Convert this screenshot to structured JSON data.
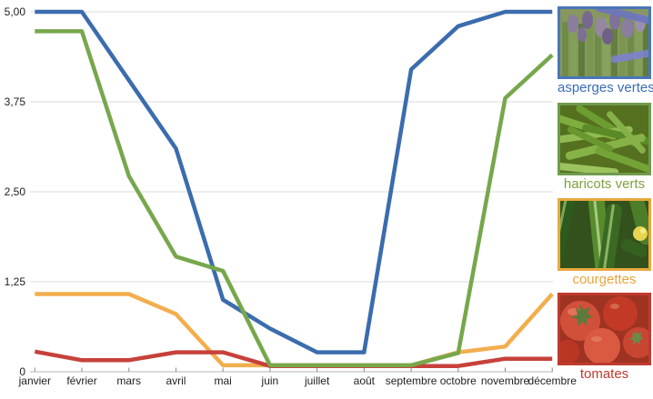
{
  "chart_data": {
    "type": "line",
    "title": "",
    "xlabel": "",
    "ylabel": "",
    "ylim": [
      0,
      5
    ],
    "grid": true,
    "legend_position": "right",
    "categories": [
      "janvier",
      "février",
      "mars",
      "avril",
      "mai",
      "juin",
      "juillet",
      "août",
      "septembre",
      "octobre",
      "novembre",
      "décembre"
    ],
    "yticks": [
      {
        "value": 5,
        "label": "5,00"
      },
      {
        "value": 3.75,
        "label": "3,75"
      },
      {
        "value": 2.5,
        "label": "2,50"
      },
      {
        "value": 1.25,
        "label": "1,25"
      },
      {
        "value": 0,
        "label": "0"
      }
    ],
    "series": [
      {
        "name": "asperges vertes",
        "color": "#3b6cae",
        "values": [
          5.0,
          5.0,
          4.05,
          3.1,
          1.0,
          0.6,
          0.27,
          0.27,
          4.2,
          4.8,
          5.0,
          5.0
        ]
      },
      {
        "name": "haricots verts",
        "color": "#77a74c",
        "values": [
          4.73,
          4.73,
          2.72,
          1.6,
          1.4,
          0.09,
          0.09,
          0.09,
          0.09,
          0.26,
          3.8,
          4.4
        ]
      },
      {
        "name": "courgettes",
        "color": "#f2ae4e",
        "values": [
          1.08,
          1.08,
          1.08,
          0.8,
          0.09,
          0.09,
          0.09,
          0.09,
          0.09,
          0.27,
          0.35,
          1.08
        ]
      },
      {
        "name": "tomates",
        "color": "#c7413b",
        "values": [
          0.28,
          0.16,
          0.16,
          0.27,
          0.27,
          0.08,
          0.08,
          0.08,
          0.08,
          0.08,
          0.18,
          0.18
        ]
      }
    ],
    "draw_order": [
      0,
      2,
      3,
      1
    ]
  },
  "legend": {
    "entries": [
      {
        "label": "asperges vertes",
        "color": "#3a6cb5",
        "border_color": "#4a76b8",
        "image": "asparagus-photo"
      },
      {
        "label": "haricots verts",
        "color": "#7fa03f",
        "border_color": "#6f9b4d",
        "image": "green-beans-photo"
      },
      {
        "label": "courgettes",
        "color": "#eaa43c",
        "border_color": "#e9a83e",
        "image": "zucchini-photo"
      },
      {
        "label": "tomates",
        "color": "#c0392f",
        "border_color": "#bf3b30",
        "image": "tomatoes-photo"
      }
    ]
  },
  "colors": {
    "gridline": "#e2e2e2",
    "axis": "#c4c4c4",
    "tick": "#8a8a8a",
    "tick_label": "#1f1f1f"
  }
}
